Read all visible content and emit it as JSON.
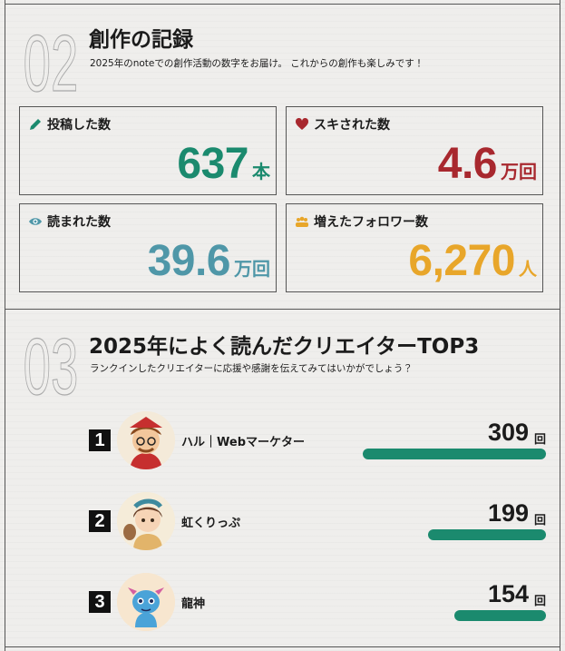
{
  "sections": [
    {
      "number": "02",
      "title": "創作の記録",
      "subtitle": "2025年のnoteでの創作活動の数字をお届け。 これからの創作も楽しみです！",
      "stats": [
        {
          "label": "投稿した数",
          "value": "637",
          "unit": "本"
        },
        {
          "label": "スキされた数",
          "value": "4.6",
          "unit": "万回"
        },
        {
          "label": "読まれた数",
          "value": "39.6",
          "unit": "万回"
        },
        {
          "label": "増えたフォロワー数",
          "value": "6,270",
          "unit": "人"
        }
      ]
    },
    {
      "number": "03",
      "title": "2025年によく読んだクリエイターTOP3",
      "subtitle": "ランクインしたクリエイターに応援や感謝を伝えてみてはいかがでしょう？",
      "ranking": [
        {
          "rank": "1",
          "name": "ハル｜Webマーケター",
          "count": 309,
          "unit": "回"
        },
        {
          "rank": "2",
          "name": "虹くりっぷ",
          "count": 199,
          "unit": "回"
        },
        {
          "rank": "3",
          "name": "龍神",
          "count": 154,
          "unit": "回"
        }
      ]
    }
  ]
}
